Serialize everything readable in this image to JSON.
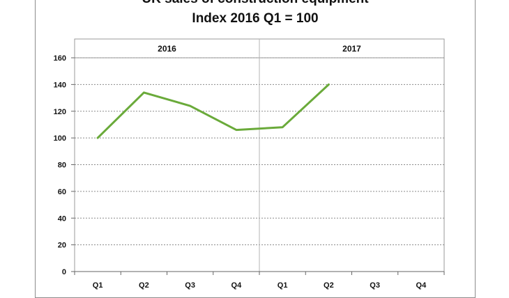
{
  "chart_data": {
    "type": "line",
    "title": "UK sales of construction equipment",
    "subtitle": "Index 2016 Q1 = 100",
    "xlabel": "",
    "ylabel": "",
    "groups": [
      {
        "label": "2016",
        "categories": [
          "Q1",
          "Q2",
          "Q3",
          "Q4"
        ]
      },
      {
        "label": "2017",
        "categories": [
          "Q1",
          "Q2",
          "Q3",
          "Q4"
        ]
      }
    ],
    "categories": [
      "Q1",
      "Q2",
      "Q3",
      "Q4",
      "Q1",
      "Q2",
      "Q3",
      "Q4"
    ],
    "series": [
      {
        "values": [
          100,
          134,
          124,
          106,
          108,
          140,
          null,
          null
        ],
        "color": "#6aaa3a"
      }
    ],
    "ylim": [
      0,
      160
    ],
    "yticks": [
      0,
      20,
      40,
      60,
      80,
      100,
      120,
      140,
      160
    ],
    "grid": true
  }
}
